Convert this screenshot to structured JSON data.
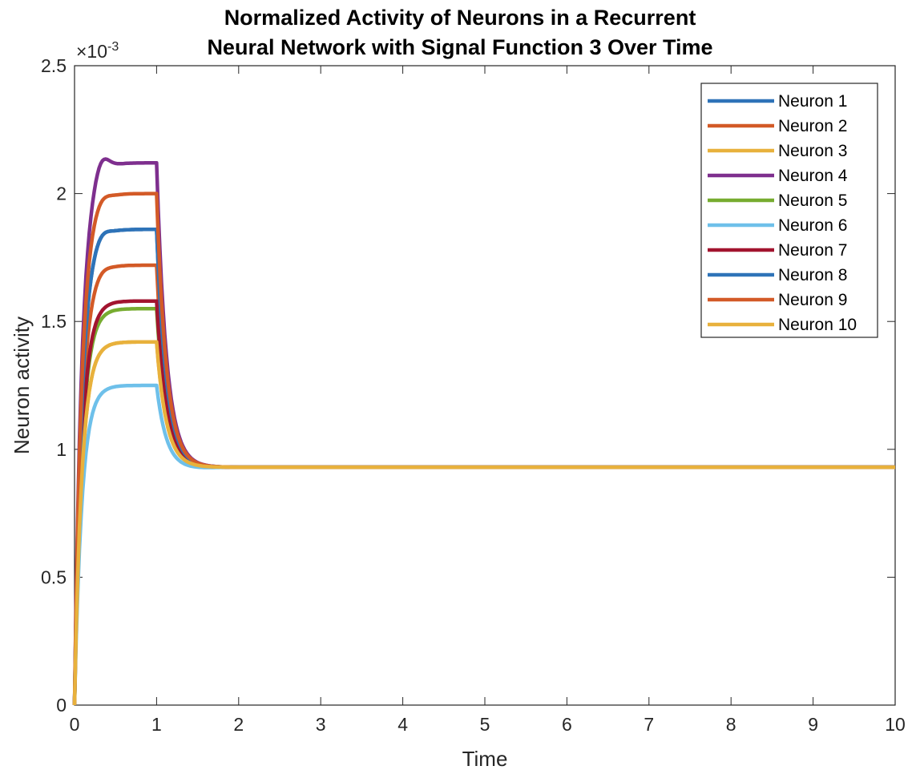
{
  "chart_data": {
    "type": "line",
    "title": [
      "Normalized Activity of Neurons in a Recurrent",
      "Neural Network with Signal Function 3 Over Time"
    ],
    "xlabel": "Time",
    "ylabel": "Neuron activity",
    "y_exponent_label": "×10",
    "y_exponent_power": "-3",
    "xlim": [
      0,
      10
    ],
    "ylim": [
      0,
      2.5
    ],
    "x_ticks": [
      0,
      1,
      2,
      3,
      4,
      5,
      6,
      7,
      8,
      9,
      10
    ],
    "x_tick_labels": [
      "0",
      "1",
      "2",
      "3",
      "4",
      "5",
      "6",
      "7",
      "8",
      "9",
      "10"
    ],
    "y_ticks": [
      0,
      0.5,
      1,
      1.5,
      2,
      2.5
    ],
    "y_tick_labels": [
      "0",
      "0.5",
      "1",
      "1.5",
      "2",
      "2.5"
    ],
    "y_scale_note": "values in units of 1e-3",
    "grid": false,
    "legend_position": "top-right",
    "series": [
      {
        "name": "Neuron 1",
        "color": "#2e73b8",
        "peak": 1.88,
        "plateau": 1.86
      },
      {
        "name": "Neuron 2",
        "color": "#d35a27",
        "peak": 1.73,
        "plateau": 1.72
      },
      {
        "name": "Neuron 3",
        "color": "#e8b13c",
        "peak": 1.42,
        "plateau": 1.42
      },
      {
        "name": "Neuron 4",
        "color": "#7e2f8e",
        "peak": 2.18,
        "plateau": 2.12
      },
      {
        "name": "Neuron 5",
        "color": "#77ac30",
        "peak": 1.55,
        "plateau": 1.55
      },
      {
        "name": "Neuron 6",
        "color": "#6ec0ea",
        "peak": 1.25,
        "plateau": 1.25
      },
      {
        "name": "Neuron 7",
        "color": "#a2142f",
        "peak": 1.58,
        "plateau": 1.58
      },
      {
        "name": "Neuron 8",
        "color": "#2e73b8",
        "peak": 1.88,
        "plateau": 1.86
      },
      {
        "name": "Neuron 9",
        "color": "#d35a27",
        "peak": 2.02,
        "plateau": 2.0
      },
      {
        "name": "Neuron 10",
        "color": "#e8b13c",
        "peak": 1.42,
        "plateau": 1.42
      }
    ],
    "steady_state": 0.93,
    "input_off_time": 1.0,
    "sample_times": [
      0,
      0.1,
      0.2,
      0.3,
      0.4,
      0.5,
      0.6,
      0.7,
      0.8,
      0.9,
      1.0,
      1.1,
      1.2,
      1.3,
      1.4,
      1.5,
      1.6,
      1.8,
      2.0,
      2.5,
      3.0,
      10.0
    ]
  }
}
